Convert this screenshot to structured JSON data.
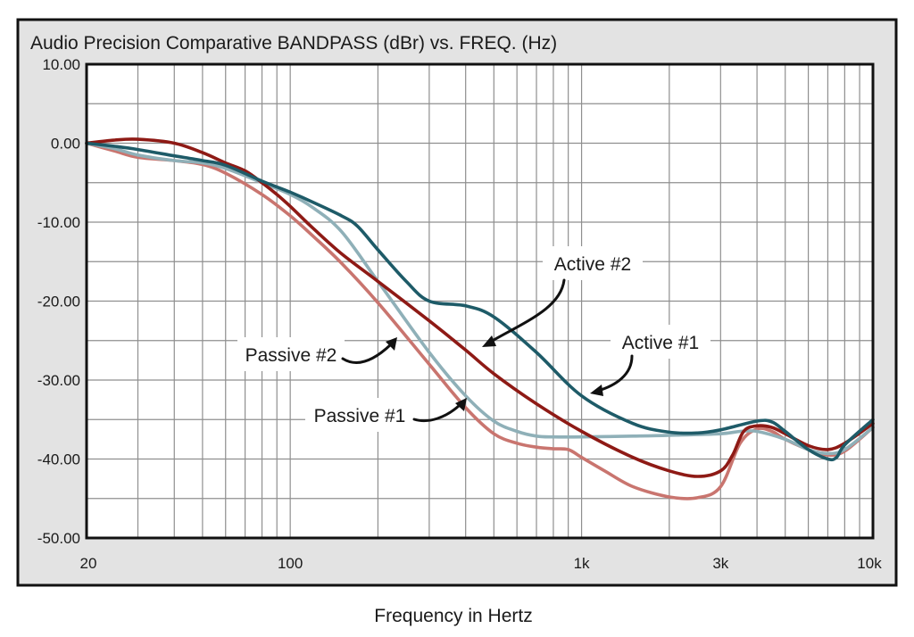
{
  "chart_data": {
    "type": "line",
    "title": "Audio Precision Comparative BANDPASS (dBr) vs. FREQ. (Hz)",
    "xlabel": "Frequency in Hertz",
    "ylabel": "",
    "xscale": "log",
    "xlim": [
      20,
      10000
    ],
    "ylim": [
      -50,
      10
    ],
    "grid": true,
    "colors": {
      "frame_bg": "#e3e3e3",
      "plot_bg": "#ffffff",
      "frame_border": "#111111"
    },
    "yticks": [
      {
        "value": 10,
        "label": "10.00"
      },
      {
        "value": 0,
        "label": "0.00"
      },
      {
        "value": -10,
        "label": "-10.00"
      },
      {
        "value": -20,
        "label": "-20.00"
      },
      {
        "value": -30,
        "label": "-30.00"
      },
      {
        "value": -40,
        "label": "-40.00"
      },
      {
        "value": -50,
        "label": "-50.00"
      }
    ],
    "xticks": [
      {
        "value": 20,
        "label": "20"
      },
      {
        "value": 100,
        "label": "100"
      },
      {
        "value": 1000,
        "label": "1k"
      },
      {
        "value": 3000,
        "label": "3k"
      },
      {
        "value": 10000,
        "label": "10k"
      }
    ],
    "series": [
      {
        "name": "Passive #2",
        "color": "#c9756f",
        "points": [
          [
            20,
            0
          ],
          [
            25,
            -1
          ],
          [
            30,
            -1.8
          ],
          [
            40,
            -2.2
          ],
          [
            50,
            -2.7
          ],
          [
            60,
            -3.8
          ],
          [
            80,
            -6.5
          ],
          [
            100,
            -9.2
          ],
          [
            120,
            -11.8
          ],
          [
            150,
            -15.2
          ],
          [
            200,
            -20.2
          ],
          [
            300,
            -28
          ],
          [
            400,
            -33.5
          ],
          [
            500,
            -36.8
          ],
          [
            600,
            -38
          ],
          [
            700,
            -38.5
          ],
          [
            800,
            -38.7
          ],
          [
            900,
            -38.8
          ],
          [
            1000,
            -39.8
          ],
          [
            1200,
            -41.5
          ],
          [
            1500,
            -43.5
          ],
          [
            2000,
            -44.8
          ],
          [
            2500,
            -44.9
          ],
          [
            3000,
            -43.5
          ],
          [
            3500,
            -38
          ],
          [
            4000,
            -36.2
          ],
          [
            4500,
            -36.5
          ],
          [
            5000,
            -37.5
          ],
          [
            6000,
            -38.8
          ],
          [
            7000,
            -39.5
          ],
          [
            8000,
            -39
          ],
          [
            10000,
            -36
          ]
        ]
      },
      {
        "name": "Passive #1",
        "color": "#8fb0b8",
        "points": [
          [
            20,
            0
          ],
          [
            25,
            -0.7
          ],
          [
            30,
            -1.5
          ],
          [
            40,
            -2.2
          ],
          [
            50,
            -2.5
          ],
          [
            60,
            -3.2
          ],
          [
            80,
            -5
          ],
          [
            100,
            -6.5
          ],
          [
            120,
            -8.2
          ],
          [
            150,
            -11.2
          ],
          [
            200,
            -17.5
          ],
          [
            300,
            -26.5
          ],
          [
            400,
            -32
          ],
          [
            500,
            -35.2
          ],
          [
            600,
            -36.5
          ],
          [
            700,
            -37.1
          ],
          [
            800,
            -37.2
          ],
          [
            1000,
            -37.2
          ],
          [
            1500,
            -37.1
          ],
          [
            2000,
            -37
          ],
          [
            3000,
            -36.8
          ],
          [
            3500,
            -36.5
          ],
          [
            4000,
            -36.5
          ],
          [
            5000,
            -37.5
          ],
          [
            6000,
            -38.8
          ],
          [
            7000,
            -39.3
          ],
          [
            8000,
            -38.8
          ],
          [
            10000,
            -36
          ]
        ]
      },
      {
        "name": "Active #2",
        "color": "#8e1a15",
        "points": [
          [
            20,
            0
          ],
          [
            25,
            0.4
          ],
          [
            30,
            0.5
          ],
          [
            40,
            0
          ],
          [
            50,
            -1.2
          ],
          [
            60,
            -2.5
          ],
          [
            70,
            -3.5
          ],
          [
            80,
            -5
          ],
          [
            90,
            -6.5
          ],
          [
            100,
            -8
          ],
          [
            120,
            -10.8
          ],
          [
            150,
            -14
          ],
          [
            200,
            -17.5
          ],
          [
            300,
            -22.5
          ],
          [
            400,
            -26.2
          ],
          [
            500,
            -29.2
          ],
          [
            700,
            -33
          ],
          [
            1000,
            -36.5
          ],
          [
            1500,
            -39.8
          ],
          [
            2000,
            -41.5
          ],
          [
            2500,
            -42.2
          ],
          [
            3000,
            -41.5
          ],
          [
            3300,
            -39.5
          ],
          [
            3600,
            -36.5
          ],
          [
            4000,
            -35.8
          ],
          [
            4500,
            -36
          ],
          [
            5000,
            -36.8
          ],
          [
            6000,
            -38.3
          ],
          [
            7000,
            -38.8
          ],
          [
            8000,
            -38
          ],
          [
            10000,
            -35.5
          ]
        ]
      },
      {
        "name": "Active #1",
        "color": "#1e5b68",
        "points": [
          [
            20,
            0
          ],
          [
            25,
            -0.4
          ],
          [
            30,
            -0.8
          ],
          [
            40,
            -1.6
          ],
          [
            50,
            -2.2
          ],
          [
            60,
            -2.8
          ],
          [
            80,
            -4.8
          ],
          [
            100,
            -6.2
          ],
          [
            120,
            -7.5
          ],
          [
            150,
            -9.2
          ],
          [
            170,
            -10.5
          ],
          [
            200,
            -13.5
          ],
          [
            250,
            -17.5
          ],
          [
            300,
            -20
          ],
          [
            400,
            -20.6
          ],
          [
            500,
            -22
          ],
          [
            700,
            -26.5
          ],
          [
            1000,
            -32
          ],
          [
            1500,
            -35.5
          ],
          [
            2000,
            -36.6
          ],
          [
            2500,
            -36.7
          ],
          [
            3000,
            -36.3
          ],
          [
            4000,
            -35.2
          ],
          [
            4500,
            -35.3
          ],
          [
            5000,
            -36.5
          ],
          [
            6000,
            -38.8
          ],
          [
            7000,
            -40
          ],
          [
            7500,
            -39.8
          ],
          [
            8000,
            -38.2
          ],
          [
            10000,
            -35
          ]
        ]
      }
    ],
    "annotations": [
      {
        "text": "Active #2"
      },
      {
        "text": "Active #1"
      },
      {
        "text": "Passive #2"
      },
      {
        "text": "Passive #1"
      }
    ]
  }
}
